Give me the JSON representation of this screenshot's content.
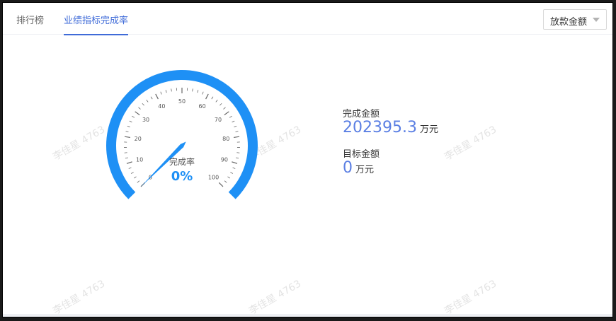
{
  "tabs": [
    {
      "label": "排行榜",
      "active": false
    },
    {
      "label": "业绩指标完成率",
      "active": true
    }
  ],
  "dropdown": {
    "selected": "放款金额"
  },
  "gauge": {
    "title": "完成率",
    "value_text": "0%",
    "value": 0,
    "min": 0,
    "max": 100,
    "tick_labels": [
      "0",
      "10",
      "20",
      "30",
      "40",
      "50",
      "60",
      "70",
      "80",
      "90",
      "100"
    ],
    "arc_color": "#1e90f5",
    "pointer_color": "#1e90f5"
  },
  "stats": {
    "completed": {
      "label": "完成金额",
      "value": "202395.3",
      "unit": "万元"
    },
    "target": {
      "label": "目标金额",
      "value": "0",
      "unit": "万元"
    }
  },
  "watermark": {
    "text": "李佳星 4763"
  },
  "colors": {
    "accent": "#3f6bd8",
    "value": "#5b7fe3"
  }
}
